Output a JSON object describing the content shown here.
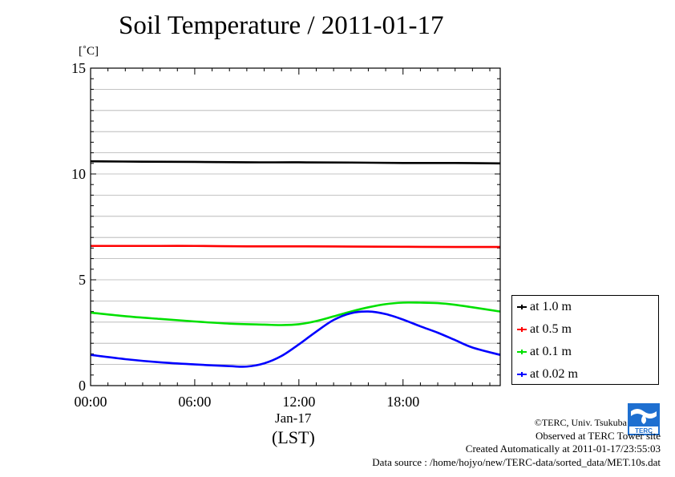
{
  "chart_data": {
    "type": "line",
    "title": "Soil Temperature / 2011-01-17",
    "ylabel": "[˚C]",
    "ylim": [
      0,
      15
    ],
    "yticks": [
      0,
      5,
      10,
      15
    ],
    "xlim": [
      0,
      23.6
    ],
    "xticks": [
      {
        "value": 0,
        "label": "00:00"
      },
      {
        "value": 6,
        "label": "06:00"
      },
      {
        "value": 12,
        "label": "12:00"
      },
      {
        "value": 18,
        "label": "18:00"
      }
    ],
    "xlabel_date": "Jan-17",
    "xlabel_zone": "(LST)",
    "grid": true,
    "legend_position": "lower-right-outside",
    "series": [
      {
        "name": "at 1.0 m",
        "color": "#000000",
        "x": [
          0,
          3,
          6,
          9,
          12,
          15,
          18,
          21,
          23.6
        ],
        "y": [
          10.6,
          10.58,
          10.57,
          10.55,
          10.55,
          10.54,
          10.52,
          10.52,
          10.5
        ]
      },
      {
        "name": "at 0.5 m",
        "color": "#ff0000",
        "x": [
          0,
          3,
          6,
          9,
          12,
          15,
          18,
          21,
          23.6
        ],
        "y": [
          6.6,
          6.6,
          6.6,
          6.58,
          6.58,
          6.57,
          6.56,
          6.55,
          6.55
        ]
      },
      {
        "name": "at 0.1 m",
        "color": "#00e000",
        "x": [
          0,
          2,
          4,
          6,
          8,
          10,
          11,
          12,
          13,
          14,
          15,
          16,
          17,
          18,
          19,
          20,
          21,
          22,
          23.6
        ],
        "y": [
          3.45,
          3.28,
          3.15,
          3.03,
          2.93,
          2.88,
          2.86,
          2.9,
          3.05,
          3.27,
          3.5,
          3.7,
          3.85,
          3.92,
          3.92,
          3.9,
          3.82,
          3.7,
          3.5
        ]
      },
      {
        "name": "at 0.02 m",
        "color": "#0000ff",
        "x": [
          0,
          2,
          4,
          6,
          8,
          9,
          10,
          11,
          12,
          13,
          14,
          15,
          16,
          17,
          18,
          19,
          20,
          21,
          22,
          23.6
        ],
        "y": [
          1.45,
          1.25,
          1.1,
          1.0,
          0.92,
          0.9,
          1.05,
          1.4,
          1.95,
          2.55,
          3.1,
          3.42,
          3.5,
          3.38,
          3.12,
          2.8,
          2.5,
          2.15,
          1.8,
          1.45
        ]
      }
    ]
  },
  "credits": {
    "copyright": "©TERC, Univ. Tsukuba",
    "observed": "Observed at TERC Tower site",
    "created": "Created Automatically at 2011-01-17/23:55:03",
    "source": "Data source : /home/hojyo/new/TERC-data/sorted_data/MET.10s.dat",
    "logo_text": "TERC"
  }
}
